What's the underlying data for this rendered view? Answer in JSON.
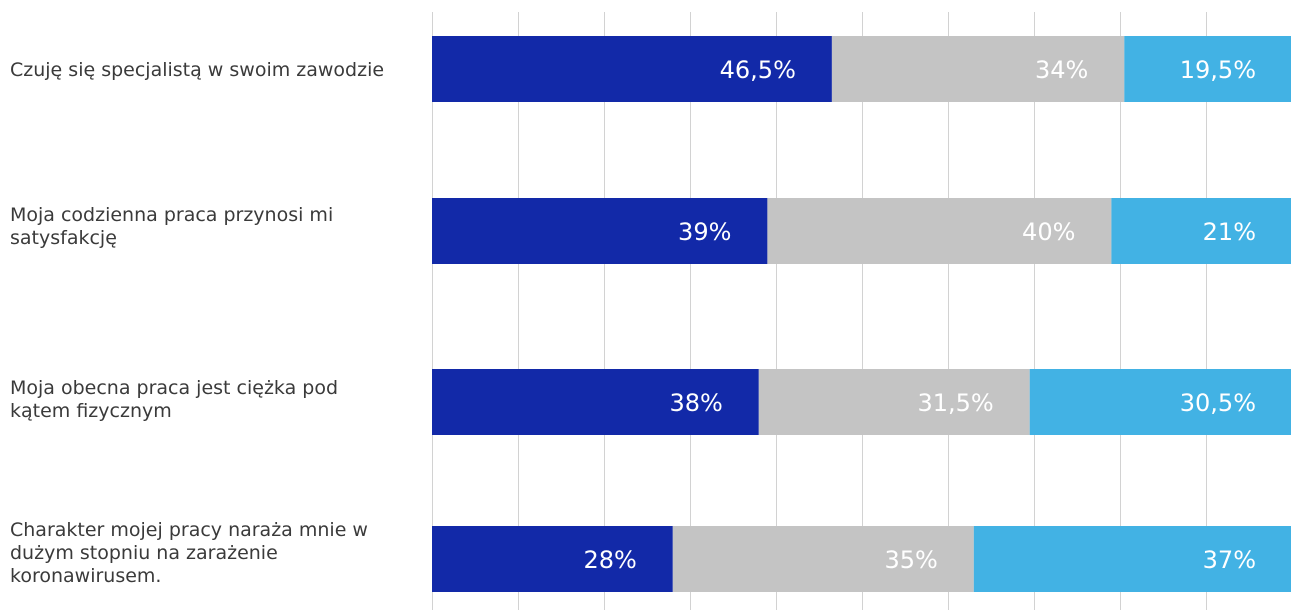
{
  "chart_data": {
    "type": "bar",
    "orientation": "horizontal",
    "stacked": true,
    "categories": [
      "Czuję się specjalistą w swoim zawodzie",
      "Moja codzienna praca przynosi mi satysfakcję",
      "Moja obecna praca jest ciężka pod kątem fizycznym",
      "Charakter mojej pracy naraża mnie w dużym stopniu na zarażenie koronawirusem."
    ],
    "series": [
      {
        "values": [
          46.5,
          39,
          38,
          28
        ],
        "labels": [
          "46,5%",
          "39%",
          "38%",
          "28%"
        ],
        "color": "#1229a8"
      },
      {
        "values": [
          34,
          40,
          31.5,
          35
        ],
        "labels": [
          "34%",
          "40%",
          "31,5%",
          "35%"
        ],
        "color": "#c4c4c4"
      },
      {
        "values": [
          19.5,
          21,
          30.5,
          37
        ],
        "labels": [
          "19,5%",
          "21%",
          "30,5%",
          "37%"
        ],
        "color": "#42b2e4"
      }
    ],
    "xlim": [
      0,
      100
    ],
    "grid": true,
    "title": "",
    "xlabel": "",
    "ylabel": ""
  }
}
